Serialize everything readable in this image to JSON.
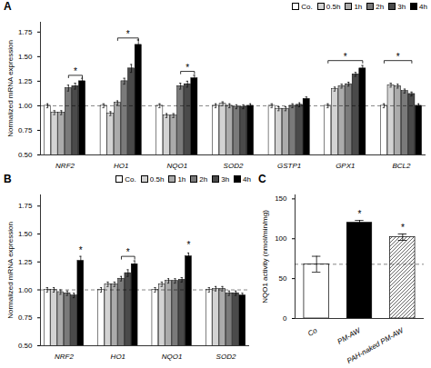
{
  "chart_data": [
    {
      "type": "bar",
      "title": "A",
      "categories": [
        "NRF2",
        "HO1",
        "NQO1",
        "SOD2",
        "GSTP1",
        "GPX1",
        "BCL2"
      ],
      "series": [
        {
          "name": "Co.",
          "color": "#ffffff",
          "values": [
            1.0,
            1.0,
            1.0,
            1.0,
            1.0,
            1.0,
            1.0
          ],
          "errors": [
            0.02,
            0.02,
            0.02,
            0.02,
            0.02,
            0.02,
            0.02
          ]
        },
        {
          "name": "0.5h",
          "color": "#d3d3d3",
          "values": [
            0.93,
            0.92,
            0.9,
            1.02,
            0.97,
            1.17,
            1.21
          ],
          "errors": [
            0.02,
            0.02,
            0.02,
            0.02,
            0.02,
            0.02,
            0.02
          ]
        },
        {
          "name": "1h",
          "color": "#ababab",
          "values": [
            0.93,
            1.03,
            0.9,
            1.0,
            0.97,
            1.2,
            1.2
          ],
          "errors": [
            0.02,
            0.02,
            0.02,
            0.02,
            0.02,
            0.02,
            0.02
          ]
        },
        {
          "name": "2h",
          "color": "#7a7a7a",
          "values": [
            1.18,
            1.25,
            1.2,
            0.99,
            1.0,
            1.22,
            1.15
          ],
          "errors": [
            0.03,
            0.03,
            0.03,
            0.02,
            0.02,
            0.02,
            0.02
          ]
        },
        {
          "name": "3h",
          "color": "#4a4a4a",
          "values": [
            1.2,
            1.38,
            1.22,
            0.99,
            1.01,
            1.32,
            1.12
          ],
          "errors": [
            0.03,
            0.04,
            0.03,
            0.02,
            0.02,
            0.02,
            0.02
          ]
        },
        {
          "name": "4h",
          "color": "#000000",
          "values": [
            1.25,
            1.62,
            1.28,
            1.0,
            1.07,
            1.38,
            1.0
          ],
          "errors": [
            0.03,
            0.05,
            0.03,
            0.02,
            0.02,
            0.03,
            0.02
          ]
        }
      ],
      "ylabel": "Normalized mRNA expression",
      "ylim": [
        0.5,
        1.85
      ],
      "yticks": [
        {
          "value": 0.5,
          "label": "0.50"
        },
        {
          "value": 0.75,
          "label": "0.75"
        },
        {
          "value": 1.0,
          "label": "1.00"
        },
        {
          "value": 1.25,
          "label": "1.25"
        },
        {
          "value": 1.5,
          "label": "1.50"
        },
        {
          "value": 1.75,
          "label": "1.75"
        }
      ],
      "reference_lines": [
        {
          "y": 1.0,
          "line_style": "dashed"
        }
      ],
      "annotations": [
        {
          "text": "*",
          "category": "NRF2",
          "from": "2h",
          "to": "4h",
          "y": 1.31
        },
        {
          "text": "*",
          "category": "HO1",
          "from": "1h",
          "to": "4h",
          "y": 1.69
        },
        {
          "text": "*",
          "category": "NQO1",
          "from": "2h",
          "to": "4h",
          "y": 1.35
        },
        {
          "text": "*",
          "category": "GPX1",
          "from": "Co.",
          "to": "4h",
          "y": 1.46
        },
        {
          "text": "*",
          "category": "BCL2",
          "from": "Co.",
          "to": "3h",
          "y": 1.46
        }
      ],
      "legend": "upper right"
    },
    {
      "type": "bar",
      "title": "B",
      "categories": [
        "NRF2",
        "HO1",
        "NQO1",
        "SOD2"
      ],
      "series": [
        {
          "name": "Co.",
          "color": "#ffffff",
          "values": [
            1.0,
            1.0,
            1.0,
            1.0
          ],
          "errors": [
            0.02,
            0.02,
            0.02,
            0.02
          ]
        },
        {
          "name": "0.5h",
          "color": "#d3d3d3",
          "values": [
            1.0,
            1.05,
            1.05,
            1.01
          ],
          "errors": [
            0.02,
            0.02,
            0.02,
            0.02
          ]
        },
        {
          "name": "1h",
          "color": "#ababab",
          "values": [
            0.98,
            1.05,
            1.08,
            1.01
          ],
          "errors": [
            0.02,
            0.02,
            0.02,
            0.02
          ]
        },
        {
          "name": "2h",
          "color": "#7a7a7a",
          "values": [
            0.97,
            1.1,
            1.08,
            0.97
          ],
          "errors": [
            0.02,
            0.02,
            0.02,
            0.02
          ]
        },
        {
          "name": "3h",
          "color": "#4a4a4a",
          "values": [
            0.95,
            1.15,
            1.09,
            0.97
          ],
          "errors": [
            0.02,
            0.03,
            0.02,
            0.02
          ]
        },
        {
          "name": "4h",
          "color": "#000000",
          "values": [
            1.26,
            1.23,
            1.3,
            0.95
          ],
          "errors": [
            0.04,
            0.03,
            0.03,
            0.02
          ]
        }
      ],
      "ylabel": "Normalized mRNA expression",
      "ylim": [
        0.5,
        1.85
      ],
      "yticks": [
        {
          "value": 0.5,
          "label": "0.50"
        },
        {
          "value": 0.75,
          "label": "0.75"
        },
        {
          "value": 1.0,
          "label": "1.00"
        },
        {
          "value": 1.25,
          "label": "1.25"
        },
        {
          "value": 1.5,
          "label": "1.50"
        },
        {
          "value": 1.75,
          "label": "1.75"
        }
      ],
      "reference_lines": [
        {
          "y": 1.0,
          "line_style": "dashed"
        }
      ],
      "annotations": [
        {
          "text": "*",
          "category": "NRF2",
          "series": "4h",
          "y": 1.32
        },
        {
          "text": "*",
          "category": "HO1",
          "from": "2h",
          "to": "4h",
          "y": 1.3
        },
        {
          "text": "*",
          "category": "NQO1",
          "series": "4h",
          "y": 1.37
        }
      ],
      "legend": "upper right"
    },
    {
      "type": "bar",
      "title": "C",
      "categories": [
        "Co",
        "PM-AW",
        "PAH-naked PM-AW"
      ],
      "values": [
        68,
        120,
        102
      ],
      "errors": [
        10,
        3,
        4
      ],
      "colors": [
        "#ffffff",
        "#000000",
        "hatch"
      ],
      "ylabel": "NQO1 activity (nmol/min/mg)",
      "ylim": [
        0,
        155
      ],
      "yticks": [
        0,
        50,
        100,
        150
      ],
      "reference_lines": [
        {
          "y": 68,
          "line_style": "dashed"
        }
      ],
      "annotations": [
        {
          "text": "*",
          "category": "PM-AW",
          "y": 126
        },
        {
          "text": "*",
          "category": "PAH-naked PM-AW",
          "y": 109
        }
      ]
    }
  ]
}
